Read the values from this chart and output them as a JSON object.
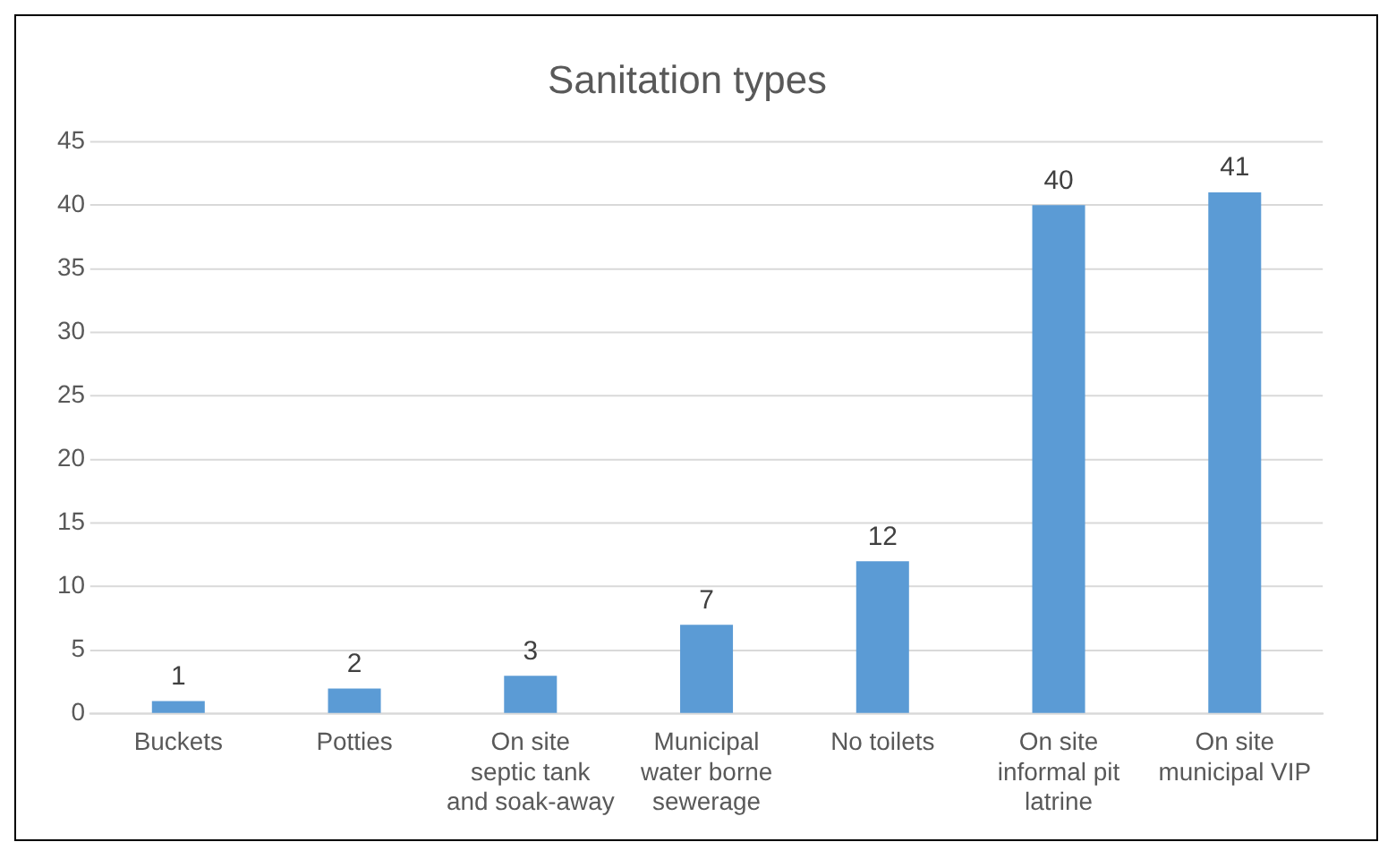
{
  "chart_data": {
    "type": "bar",
    "title": "Sanitation types",
    "categories": [
      "Buckets",
      "Potties",
      "On site septic tank and soak-away",
      "Municipal water borne sewerage",
      "No toilets",
      "On site informal pit latrine",
      "On site municipal VIP"
    ],
    "values": [
      1,
      2,
      3,
      7,
      12,
      40,
      41
    ],
    "color": "#5b9bd5",
    "ylim": [
      0,
      45
    ],
    "yticks": [
      0,
      5,
      10,
      15,
      20,
      25,
      30,
      35,
      40,
      45
    ],
    "grid": "y",
    "data_labels": true,
    "legend": false
  }
}
